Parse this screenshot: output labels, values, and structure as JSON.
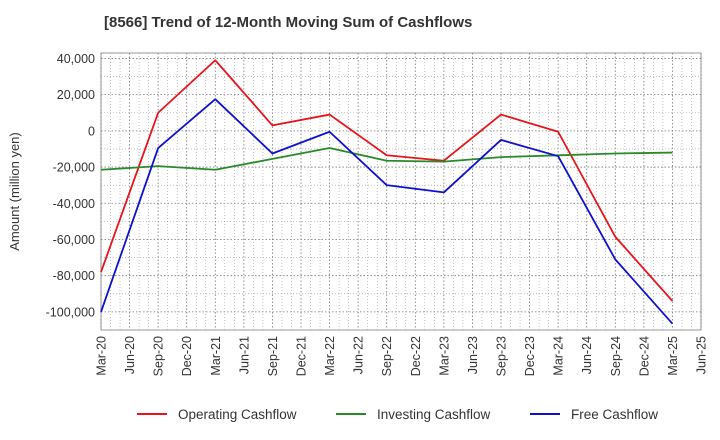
{
  "chart_data": {
    "type": "line",
    "title": "[8566]  Trend of 12-Month Moving Sum of Cashflows",
    "xlabel": "",
    "ylabel": "Amount (million yen)",
    "x": [
      "Mar-20",
      "Jun-20",
      "Sep-20",
      "Dec-20",
      "Mar-21",
      "Jun-21",
      "Sep-21",
      "Dec-21",
      "Mar-22",
      "Jun-22",
      "Sep-22",
      "Dec-22",
      "Mar-23",
      "Jun-23",
      "Sep-23",
      "Dec-23",
      "Mar-24",
      "Jun-24",
      "Sep-24",
      "Dec-24",
      "Mar-25",
      "Jun-25"
    ],
    "ylim": [
      -110000,
      43000
    ],
    "yticks": [
      -100000,
      -80000,
      -60000,
      -40000,
      -20000,
      0,
      20000,
      40000
    ],
    "ytick_labels": [
      "-100,000",
      "-80,000",
      "-60,000",
      "-40,000",
      "-20,000",
      "0",
      "20,000",
      "40,000"
    ],
    "grid": true,
    "legend_position": "bottom",
    "series": [
      {
        "name": "Operating Cashflow",
        "color": "#e8141c",
        "points": [
          {
            "x": "Mar-20",
            "y": -78000
          },
          {
            "x": "Sep-20",
            "y": 10000
          },
          {
            "x": "Mar-21",
            "y": 39000
          },
          {
            "x": "Sep-21",
            "y": 3000
          },
          {
            "x": "Mar-22",
            "y": 9000
          },
          {
            "x": "Sep-22",
            "y": -13500
          },
          {
            "x": "Mar-23",
            "y": -16500
          },
          {
            "x": "Sep-23",
            "y": 9000
          },
          {
            "x": "Mar-24",
            "y": -500
          },
          {
            "x": "Sep-24",
            "y": -58500
          },
          {
            "x": "Mar-25",
            "y": -94000
          }
        ]
      },
      {
        "name": "Investing Cashflow",
        "color": "#2a8a2a",
        "points": [
          {
            "x": "Mar-20",
            "y": -21500
          },
          {
            "x": "Sep-20",
            "y": -19500
          },
          {
            "x": "Mar-21",
            "y": -21500
          },
          {
            "x": "Sep-21",
            "y": -15500
          },
          {
            "x": "Mar-22",
            "y": -9500
          },
          {
            "x": "Sep-22",
            "y": -16500
          },
          {
            "x": "Mar-23",
            "y": -17000
          },
          {
            "x": "Sep-23",
            "y": -14500
          },
          {
            "x": "Mar-24",
            "y": -13500
          },
          {
            "x": "Sep-24",
            "y": -12500
          },
          {
            "x": "Mar-25",
            "y": -12000
          }
        ]
      },
      {
        "name": "Free Cashflow",
        "color": "#1010cc",
        "points": [
          {
            "x": "Mar-20",
            "y": -100000
          },
          {
            "x": "Sep-20",
            "y": -9500
          },
          {
            "x": "Mar-21",
            "y": 17500
          },
          {
            "x": "Sep-21",
            "y": -12500
          },
          {
            "x": "Mar-22",
            "y": -500
          },
          {
            "x": "Sep-22",
            "y": -30000
          },
          {
            "x": "Mar-23",
            "y": -34000
          },
          {
            "x": "Sep-23",
            "y": -5000
          },
          {
            "x": "Mar-24",
            "y": -14000
          },
          {
            "x": "Sep-24",
            "y": -71000
          },
          {
            "x": "Mar-25",
            "y": -106500
          }
        ]
      }
    ]
  }
}
